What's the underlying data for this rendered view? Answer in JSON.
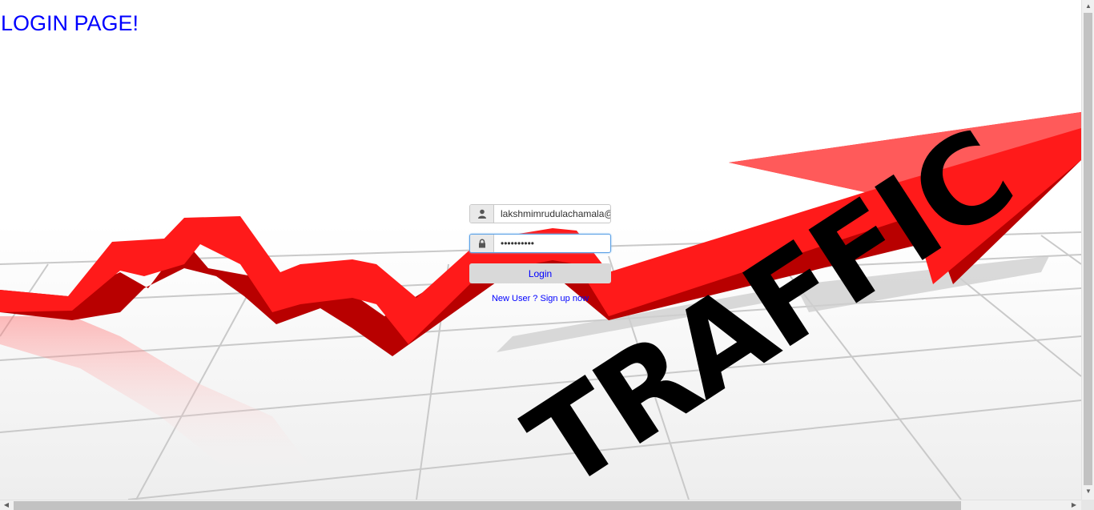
{
  "page": {
    "title": "LOGIN PAGE!"
  },
  "background": {
    "caption": "TRAFFIC",
    "arrow_color": "#ff1010",
    "text_color": "#000000"
  },
  "login_form": {
    "email_value": "lakshmimrudulachamala@gmail.com",
    "password_value": "••••••••••",
    "login_label": "Login",
    "signup_label": "New User ? Sign up now"
  },
  "colors": {
    "title": "#0000ff",
    "link": "#0000ff",
    "button_bg": "#d9d9d9"
  },
  "icons": {
    "email": "user-icon",
    "password": "lock-icon"
  }
}
